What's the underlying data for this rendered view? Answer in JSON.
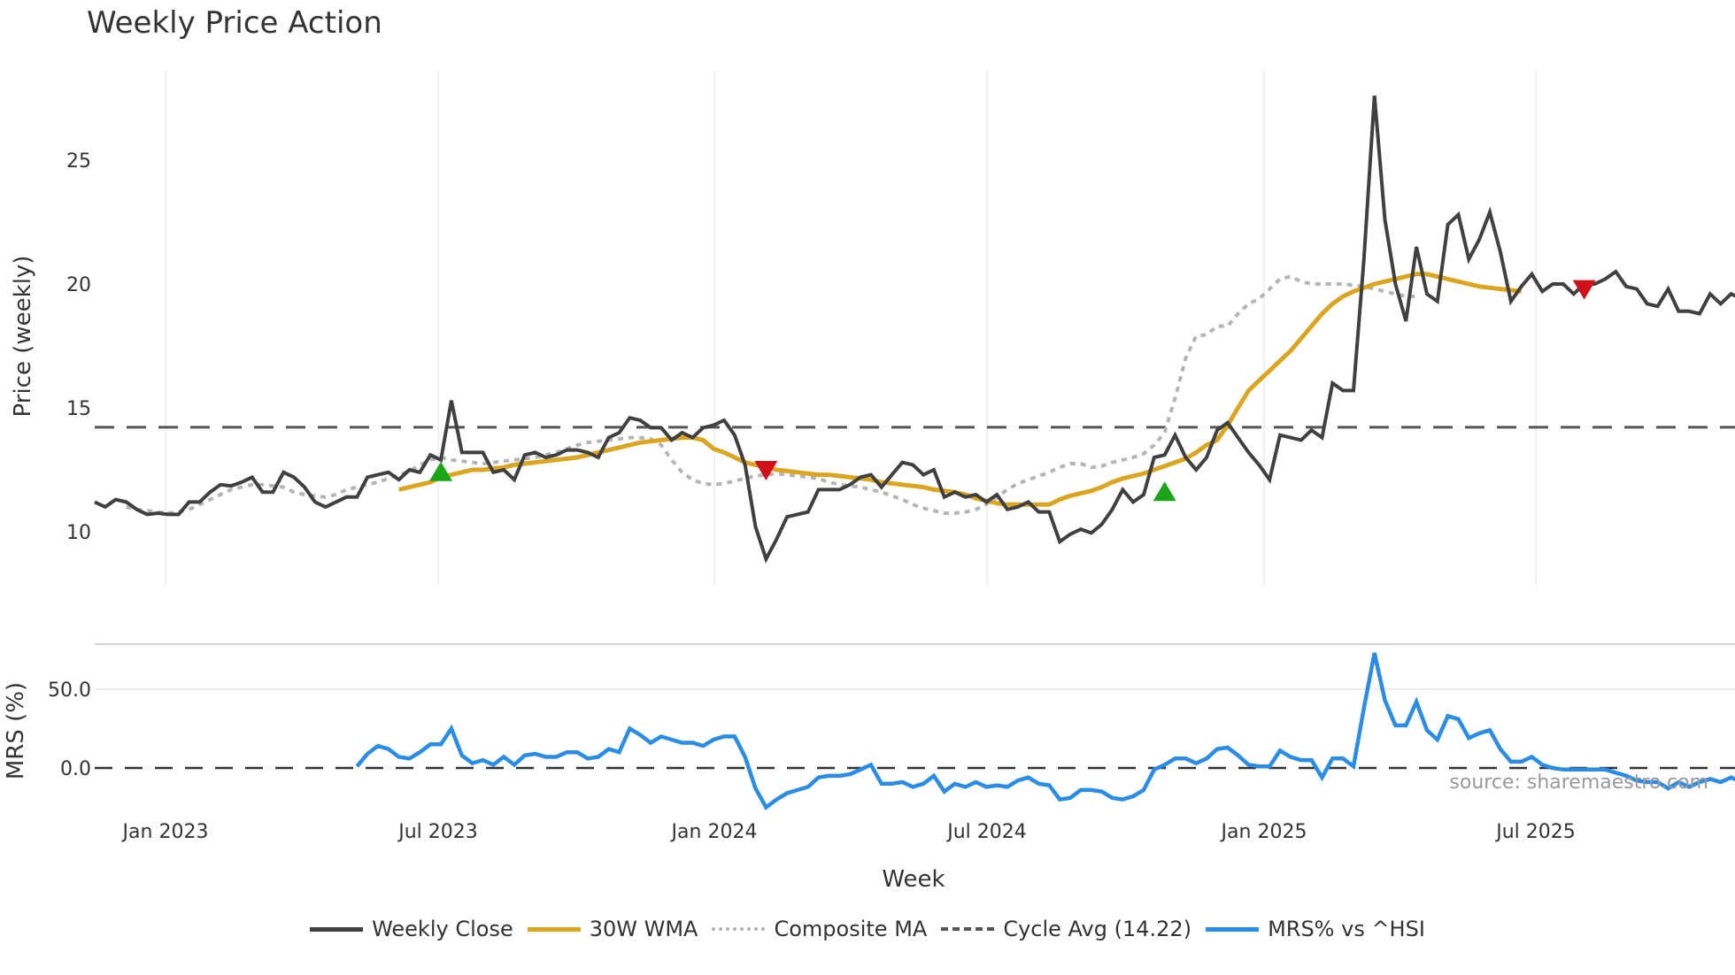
{
  "title": "Weekly Price Action",
  "legend": [
    {
      "label": "Weekly Close",
      "color": "#404040",
      "style": "solid"
    },
    {
      "label": "30W WMA",
      "color": "#DAA520",
      "style": "solid"
    },
    {
      "label": "Composite MA",
      "color": "#b0b0b0",
      "style": "dotted"
    },
    {
      "label": "Cycle Avg (14.22)",
      "color": "#555555",
      "style": "dashed"
    },
    {
      "label": "MRS% vs ^HSI",
      "color": "#2b8ce6",
      "style": "solid"
    }
  ],
  "source": "source: sharemaestro.com",
  "chart_data": [
    {
      "type": "line",
      "title": "Weekly Price Action",
      "xlabel": "Week",
      "ylabel": "Price (weekly)",
      "x_tick_labels": [
        "Jan 2023",
        "Jul 2023",
        "Jan 2024",
        "Jul 2024",
        "Jan 2025",
        "Jul 2025"
      ],
      "y_ticks": [
        10,
        15,
        20,
        25
      ],
      "ylim": [
        8,
        28
      ],
      "grid": "vertical",
      "cycle_avg": 14.22,
      "series": [
        {
          "name": "Weekly Close",
          "values": [
            11.2,
            11.0,
            11.3,
            11.2,
            10.9,
            10.7,
            10.75,
            10.7,
            10.7,
            11.2,
            11.2,
            11.6,
            11.9,
            11.85,
            12.0,
            12.2,
            11.6,
            11.6,
            12.4,
            12.2,
            11.8,
            11.2,
            11.0,
            11.2,
            11.4,
            11.4,
            12.2,
            12.3,
            12.4,
            12.1,
            12.5,
            12.4,
            13.1,
            12.9,
            15.3,
            13.2,
            13.2,
            13.2,
            12.4,
            12.5,
            12.1,
            13.1,
            13.2,
            13.0,
            13.1,
            13.3,
            13.3,
            13.2,
            13.0,
            13.8,
            14.0,
            14.6,
            14.5,
            14.2,
            14.2,
            13.7,
            14.0,
            13.8,
            14.2,
            14.3,
            14.5,
            13.9,
            12.7,
            10.2,
            8.9,
            9.7,
            10.6,
            10.7,
            10.8,
            11.7,
            11.7,
            11.7,
            11.9,
            12.2,
            12.3,
            11.8,
            12.3,
            12.8,
            12.7,
            12.3,
            12.5,
            11.4,
            11.6,
            11.4,
            11.5,
            11.2,
            11.5,
            10.9,
            11.0,
            11.2,
            10.8,
            10.8,
            9.6,
            9.9,
            10.1,
            9.95,
            10.3,
            10.9,
            11.7,
            11.2,
            11.5,
            13.0,
            13.1,
            13.9,
            13.0,
            12.5,
            13.0,
            14.1,
            14.4,
            13.8,
            13.2,
            12.7,
            12.1,
            13.9,
            13.8,
            13.7,
            14.1,
            13.8,
            16.0,
            15.7,
            15.7,
            21.0,
            27.6,
            22.6,
            20.0,
            18.5,
            21.5,
            19.6,
            19.3,
            22.4,
            22.8,
            21.0,
            21.8,
            22.9,
            21.3,
            19.3,
            19.9,
            20.4,
            19.7,
            20.0,
            20.0,
            19.6,
            20.0,
            20.0,
            20.2,
            20.5,
            19.9,
            19.8,
            19.2,
            19.1,
            19.8,
            18.9,
            18.9,
            18.8,
            19.6,
            19.2,
            19.6,
            19.4
          ]
        },
        {
          "name": "30W WMA",
          "start_index": 29,
          "values": [
            11.7,
            11.8,
            11.9,
            12.0,
            12.2,
            12.3,
            12.4,
            12.5,
            12.5,
            12.55,
            12.6,
            12.7,
            12.75,
            12.8,
            12.85,
            12.9,
            12.95,
            13.0,
            13.1,
            13.2,
            13.3,
            13.4,
            13.5,
            13.6,
            13.65,
            13.7,
            13.75,
            13.8,
            13.8,
            13.7,
            13.35,
            13.2,
            13.0,
            12.8,
            12.7,
            12.6,
            12.5,
            12.45,
            12.4,
            12.35,
            12.3,
            12.3,
            12.25,
            12.2,
            12.15,
            12.1,
            12.0,
            11.95,
            11.9,
            11.85,
            11.8,
            11.7,
            11.65,
            11.6,
            11.5,
            11.35,
            11.25,
            11.15,
            11.1,
            11.1,
            11.1,
            11.1,
            11.1,
            11.3,
            11.45,
            11.55,
            11.65,
            11.8,
            12.0,
            12.15,
            12.25,
            12.35,
            12.5,
            12.65,
            12.8,
            12.95,
            13.2,
            13.5,
            13.7,
            14.3,
            15.0,
            15.7,
            16.1,
            16.5,
            16.9,
            17.3,
            17.8,
            18.3,
            18.8,
            19.2,
            19.5,
            19.7,
            19.85,
            20.0,
            20.1,
            20.2,
            20.3,
            20.4,
            20.4,
            20.3,
            20.2,
            20.1,
            20.0,
            19.9,
            19.85,
            19.8,
            19.75,
            19.7
          ]
        },
        {
          "name": "Composite MA",
          "start_index": 3,
          "values": [
            11.0,
            10.9,
            10.85,
            10.8,
            10.75,
            10.8,
            10.9,
            11.1,
            11.3,
            11.5,
            11.7,
            11.8,
            11.9,
            11.9,
            11.85,
            11.8,
            11.6,
            11.5,
            11.45,
            11.4,
            11.5,
            11.7,
            11.8,
            11.9,
            12.0,
            12.15,
            12.3,
            12.45,
            12.7,
            12.9,
            13.0,
            12.9,
            12.85,
            12.8,
            12.75,
            12.8,
            12.85,
            12.9,
            12.95,
            13.0,
            13.1,
            13.2,
            13.35,
            13.5,
            13.6,
            13.65,
            13.7,
            13.75,
            13.8,
            13.8,
            13.75,
            13.5,
            12.9,
            12.4,
            12.1,
            11.95,
            11.9,
            11.95,
            12.05,
            12.15,
            12.25,
            12.3,
            12.35,
            12.3,
            12.25,
            12.2,
            12.15,
            12.0,
            11.9,
            11.85,
            11.8,
            11.7,
            11.6,
            11.45,
            11.3,
            11.1,
            10.95,
            10.85,
            10.75,
            10.75,
            10.8,
            10.9,
            11.1,
            11.4,
            11.7,
            11.95,
            12.1,
            12.25,
            12.4,
            12.6,
            12.75,
            12.75,
            12.6,
            12.65,
            12.8,
            12.9,
            13.0,
            13.15,
            13.5,
            14.0,
            15.4,
            17.0,
            17.9,
            17.95,
            18.3,
            18.3,
            18.8,
            19.2,
            19.4,
            19.8,
            20.2,
            20.3,
            20.1,
            20.0,
            20.0,
            20.0,
            20.0,
            19.95,
            19.9,
            19.8,
            19.7,
            19.6,
            19.5,
            19.5
          ]
        },
        {
          "name": "Buy signals",
          "type": "scatter",
          "marker": "triangle-up",
          "color": "#1aa51a",
          "points": [
            [
              33,
              12.4
            ],
            [
              102,
              11.6
            ]
          ]
        },
        {
          "name": "Sell signals",
          "type": "scatter",
          "marker": "triangle-down",
          "color": "#d0101a",
          "points": [
            [
              64,
              12.5
            ],
            [
              142,
              19.8
            ]
          ]
        }
      ]
    },
    {
      "type": "line",
      "ylabel": "MRS (%)",
      "y_ticks": [
        0.0,
        50.0
      ],
      "y_tick_labels": [
        "0.0",
        "50.0"
      ],
      "ylim": [
        -28,
        80
      ],
      "zero_line": "dashed",
      "series": [
        {
          "name": "MRS% vs ^HSI",
          "start_index": 25,
          "values": [
            1,
            9,
            14,
            12,
            7,
            6,
            10,
            15,
            15,
            25,
            8,
            3,
            5,
            2,
            7,
            2,
            8,
            9,
            7,
            7,
            10,
            10,
            6,
            7,
            12,
            10,
            25,
            21,
            16,
            20,
            18,
            16,
            16,
            14,
            18,
            20,
            20,
            7,
            -13,
            -25,
            -20,
            -16,
            -14,
            -12,
            -6,
            -5,
            -5,
            -4,
            -1,
            2,
            -10,
            -10,
            -9,
            -12,
            -10,
            -5,
            -15,
            -10,
            -12,
            -9,
            -12,
            -11,
            -12,
            -8,
            -6,
            -10,
            -11,
            -20,
            -19,
            -14,
            -14,
            -15,
            -19,
            -20,
            -18,
            -14,
            -1,
            2,
            6,
            6,
            3,
            6,
            12,
            13,
            8,
            2,
            1,
            1,
            11,
            7,
            5,
            5,
            -6,
            6,
            6,
            1,
            38,
            73,
            43,
            27,
            27,
            42,
            24,
            18,
            33,
            31,
            19,
            22,
            24,
            12,
            4,
            4,
            7,
            2,
            0,
            -1,
            -1,
            -1,
            -1,
            -1,
            -3,
            -5,
            -8,
            -9,
            -9,
            -13,
            -9,
            -12,
            -9,
            -7,
            -9,
            -6,
            -9
          ]
        }
      ]
    }
  ]
}
